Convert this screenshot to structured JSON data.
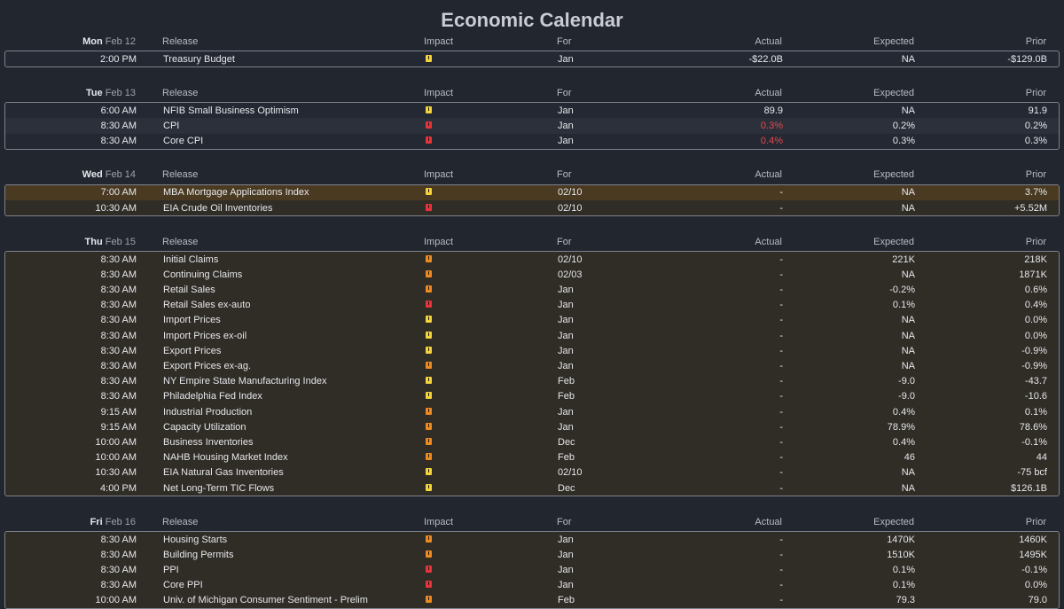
{
  "title": "Economic Calendar",
  "columns": {
    "release": "Release",
    "impact": "Impact",
    "for": "For",
    "actual": "Actual",
    "expected": "Expected",
    "prior": "Prior"
  },
  "impact_colors": {
    "low": "#f5d33a",
    "medium": "#ef8a1f",
    "high": "#e8333b"
  },
  "days": [
    {
      "day": "Mon",
      "date": "Feb 12",
      "box": "neutral",
      "rows": [
        {
          "time": "2:00 PM",
          "release": "Treasury Budget",
          "impact": "low",
          "for": "Jan",
          "actual": "-$22.0B",
          "expected": "NA",
          "prior": "-$129.0B"
        }
      ]
    },
    {
      "day": "Tue",
      "date": "Feb 13",
      "box": "neutral",
      "rows": [
        {
          "time": "6:00 AM",
          "release": "NFIB Small Business Optimism",
          "impact": "low",
          "for": "Jan",
          "actual": "89.9",
          "expected": "NA",
          "prior": "91.9"
        },
        {
          "time": "8:30 AM",
          "release": "CPI",
          "impact": "high",
          "for": "Jan",
          "actual": "0.3%",
          "actual_color": "red",
          "expected": "0.2%",
          "prior": "0.2%",
          "alt": true
        },
        {
          "time": "8:30 AM",
          "release": "Core CPI",
          "impact": "high",
          "for": "Jan",
          "actual": "0.4%",
          "actual_color": "red",
          "expected": "0.3%",
          "prior": "0.3%"
        }
      ]
    },
    {
      "day": "Wed",
      "date": "Feb 14",
      "box": "warm",
      "rows": [
        {
          "time": "7:00 AM",
          "release": "MBA Mortgage Applications Index",
          "impact": "low",
          "for": "02/10",
          "actual": "-",
          "expected": "NA",
          "prior": "3.7%",
          "highlight": true
        },
        {
          "time": "10:30 AM",
          "release": "EIA Crude Oil Inventories",
          "impact": "high",
          "for": "02/10",
          "actual": "-",
          "expected": "NA",
          "prior": "+5.52M"
        }
      ]
    },
    {
      "day": "Thu",
      "date": "Feb 15",
      "box": "warm",
      "rows": [
        {
          "time": "8:30 AM",
          "release": "Initial Claims",
          "impact": "medium",
          "for": "02/10",
          "actual": "-",
          "expected": "221K",
          "prior": "218K"
        },
        {
          "time": "8:30 AM",
          "release": "Continuing Claims",
          "impact": "medium",
          "for": "02/03",
          "actual": "-",
          "expected": "NA",
          "prior": "1871K"
        },
        {
          "time": "8:30 AM",
          "release": "Retail Sales",
          "impact": "medium",
          "for": "Jan",
          "actual": "-",
          "expected": "-0.2%",
          "prior": "0.6%"
        },
        {
          "time": "8:30 AM",
          "release": "Retail Sales ex-auto",
          "impact": "high",
          "for": "Jan",
          "actual": "-",
          "expected": "0.1%",
          "prior": "0.4%"
        },
        {
          "time": "8:30 AM",
          "release": "Import Prices",
          "impact": "low",
          "for": "Jan",
          "actual": "-",
          "expected": "NA",
          "prior": "0.0%"
        },
        {
          "time": "8:30 AM",
          "release": "Import Prices ex-oil",
          "impact": "low",
          "for": "Jan",
          "actual": "-",
          "expected": "NA",
          "prior": "0.0%"
        },
        {
          "time": "8:30 AM",
          "release": "Export Prices",
          "impact": "low",
          "for": "Jan",
          "actual": "-",
          "expected": "NA",
          "prior": "-0.9%"
        },
        {
          "time": "8:30 AM",
          "release": "Export Prices ex-ag.",
          "impact": "medium",
          "for": "Jan",
          "actual": "-",
          "expected": "NA",
          "prior": "-0.9%"
        },
        {
          "time": "8:30 AM",
          "release": "NY Empire State Manufacturing Index",
          "impact": "low",
          "for": "Feb",
          "actual": "-",
          "expected": "-9.0",
          "prior": "-43.7"
        },
        {
          "time": "8:30 AM",
          "release": "Philadelphia Fed Index",
          "impact": "low",
          "for": "Feb",
          "actual": "-",
          "expected": "-9.0",
          "prior": "-10.6"
        },
        {
          "time": "9:15 AM",
          "release": "Industrial Production",
          "impact": "medium",
          "for": "Jan",
          "actual": "-",
          "expected": "0.4%",
          "prior": "0.1%"
        },
        {
          "time": "9:15 AM",
          "release": "Capacity Utilization",
          "impact": "medium",
          "for": "Jan",
          "actual": "-",
          "expected": "78.9%",
          "prior": "78.6%"
        },
        {
          "time": "10:00 AM",
          "release": "Business Inventories",
          "impact": "medium",
          "for": "Dec",
          "actual": "-",
          "expected": "0.4%",
          "prior": "-0.1%"
        },
        {
          "time": "10:00 AM",
          "release": "NAHB Housing Market Index",
          "impact": "medium",
          "for": "Feb",
          "actual": "-",
          "expected": "46",
          "prior": "44"
        },
        {
          "time": "10:30 AM",
          "release": "EIA Natural Gas Inventories",
          "impact": "low",
          "for": "02/10",
          "actual": "-",
          "expected": "NA",
          "prior": "-75 bcf"
        },
        {
          "time": "4:00 PM",
          "release": "Net Long-Term TIC Flows",
          "impact": "low",
          "for": "Dec",
          "actual": "-",
          "expected": "NA",
          "prior": "$126.1B"
        }
      ]
    },
    {
      "day": "Fri",
      "date": "Feb 16",
      "box": "warm",
      "rows": [
        {
          "time": "8:30 AM",
          "release": "Housing Starts",
          "impact": "medium",
          "for": "Jan",
          "actual": "-",
          "expected": "1470K",
          "prior": "1460K"
        },
        {
          "time": "8:30 AM",
          "release": "Building Permits",
          "impact": "medium",
          "for": "Jan",
          "actual": "-",
          "expected": "1510K",
          "prior": "1495K"
        },
        {
          "time": "8:30 AM",
          "release": "PPI",
          "impact": "high",
          "for": "Jan",
          "actual": "-",
          "expected": "0.1%",
          "prior": "-0.1%"
        },
        {
          "time": "8:30 AM",
          "release": "Core PPI",
          "impact": "high",
          "for": "Jan",
          "actual": "-",
          "expected": "0.1%",
          "prior": "0.0%"
        },
        {
          "time": "10:00 AM",
          "release": "Univ. of Michigan Consumer Sentiment - Prelim",
          "impact": "medium",
          "for": "Feb",
          "actual": "-",
          "expected": "79.3",
          "prior": "79.0"
        }
      ]
    }
  ]
}
